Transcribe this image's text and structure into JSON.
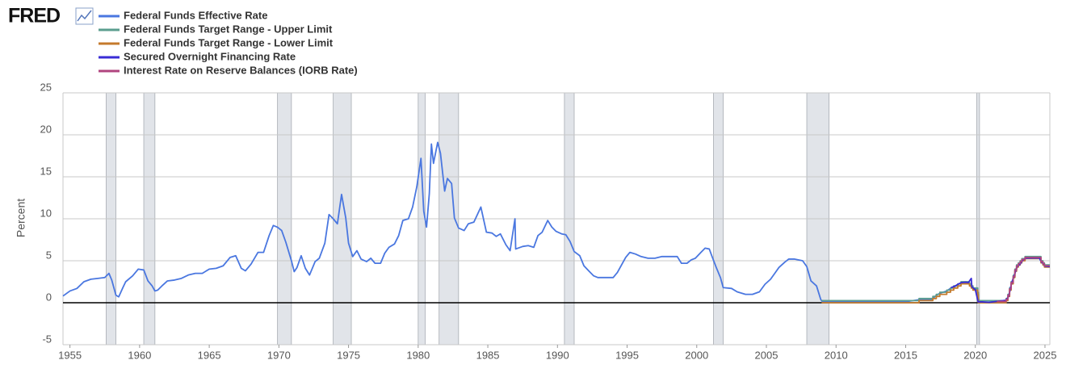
{
  "logo": "FRED",
  "chart_data": {
    "type": "line",
    "y_label": "Percent",
    "xlim": [
      1954.5,
      2025.35
    ],
    "xticks": [
      1955,
      1960,
      1965,
      1970,
      1975,
      1980,
      1985,
      1990,
      1995,
      2000,
      2005,
      2010,
      2015,
      2020,
      2025
    ],
    "ylim": [
      -5,
      25
    ],
    "yticks": [
      -5,
      0,
      5,
      10,
      15,
      20,
      25
    ],
    "grid": true,
    "recession_color": "#e1e4e9",
    "recessions": [
      [
        1957.6,
        1958.3
      ],
      [
        1960.3,
        1961.1
      ],
      [
        1969.9,
        1970.9
      ],
      [
        1973.9,
        1975.2
      ],
      [
        1980.0,
        1980.5
      ],
      [
        1981.5,
        1982.9
      ],
      [
        1990.5,
        1991.2
      ],
      [
        2001.2,
        2001.9
      ],
      [
        2007.9,
        2009.5
      ],
      [
        2020.1,
        2020.3
      ]
    ],
    "series": [
      {
        "name": "Federal Funds Effective Rate",
        "color": "#4a77e0",
        "x": [
          1954.5,
          1955.0,
          1955.5,
          1956.0,
          1956.5,
          1957.0,
          1957.5,
          1957.8,
          1958.0,
          1958.3,
          1958.5,
          1958.8,
          1959.0,
          1959.5,
          1959.9,
          1960.3,
          1960.6,
          1960.9,
          1961.1,
          1961.3,
          1961.6,
          1962.0,
          1962.5,
          1963.0,
          1963.5,
          1964.0,
          1964.5,
          1965.0,
          1965.5,
          1966.0,
          1966.5,
          1966.9,
          1967.3,
          1967.6,
          1968.0,
          1968.5,
          1968.9,
          1969.3,
          1969.6,
          1969.9,
          1970.2,
          1970.5,
          1970.9,
          1971.1,
          1971.3,
          1971.6,
          1971.9,
          1972.2,
          1972.6,
          1972.9,
          1973.3,
          1973.6,
          1973.9,
          1974.2,
          1974.5,
          1974.8,
          1975.0,
          1975.3,
          1975.6,
          1975.9,
          1976.3,
          1976.6,
          1976.9,
          1977.3,
          1977.6,
          1977.9,
          1978.3,
          1978.6,
          1978.9,
          1979.3,
          1979.6,
          1979.9,
          1980.2,
          1980.4,
          1980.6,
          1980.8,
          1980.95,
          1981.1,
          1981.4,
          1981.6,
          1981.9,
          1982.1,
          1982.4,
          1982.6,
          1982.9,
          1983.3,
          1983.6,
          1984.0,
          1984.5,
          1984.9,
          1985.3,
          1985.6,
          1985.9,
          1986.3,
          1986.6,
          1986.95,
          1987.0,
          1987.5,
          1987.9,
          1988.3,
          1988.6,
          1988.9,
          1989.3,
          1989.6,
          1989.9,
          1990.3,
          1990.6,
          1990.9,
          1991.2,
          1991.6,
          1991.9,
          1992.3,
          1992.6,
          1992.9,
          1993.5,
          1994.0,
          1994.3,
          1994.6,
          1994.9,
          1995.2,
          1995.6,
          1996.0,
          1996.5,
          1997.0,
          1997.5,
          1998.0,
          1998.6,
          1998.9,
          1999.3,
          1999.6,
          1999.9,
          2000.3,
          2000.6,
          2000.9,
          2001.1,
          2001.4,
          2001.7,
          2001.9,
          2002.5,
          2002.9,
          2003.5,
          2004.0,
          2004.5,
          2004.9,
          2005.3,
          2005.6,
          2005.9,
          2006.3,
          2006.6,
          2007.0,
          2007.6,
          2007.9,
          2008.2,
          2008.6,
          2008.9,
          2009.0,
          2009.5,
          2011.0,
          2013.0,
          2015.0,
          2015.95,
          2016.9,
          2017.2,
          2017.5,
          2017.95,
          2018.2,
          2018.5,
          2018.8,
          2019.0,
          2019.5,
          2019.6,
          2019.8,
          2020.1,
          2020.2,
          2020.3,
          2021.0,
          2022.2,
          2022.4,
          2022.5,
          2022.6,
          2022.75,
          2022.9,
          2023.0,
          2023.2,
          2023.4,
          2023.6,
          2024.6,
          2024.75,
          2024.9,
          2025.0,
          2025.35
        ],
        "values": [
          0.8,
          1.4,
          1.7,
          2.5,
          2.8,
          2.9,
          3.0,
          3.5,
          2.7,
          0.9,
          0.7,
          1.8,
          2.5,
          3.2,
          4.0,
          3.9,
          2.6,
          2.0,
          1.4,
          1.5,
          2.0,
          2.6,
          2.7,
          2.9,
          3.3,
          3.5,
          3.5,
          4.0,
          4.1,
          4.4,
          5.4,
          5.6,
          4.1,
          3.8,
          4.6,
          6.0,
          6.0,
          8.0,
          9.2,
          9.0,
          8.6,
          7.2,
          5.0,
          3.7,
          4.2,
          5.6,
          4.1,
          3.3,
          4.9,
          5.3,
          7.1,
          10.5,
          10.0,
          9.4,
          12.9,
          10.1,
          7.1,
          5.5,
          6.2,
          5.2,
          4.9,
          5.3,
          4.7,
          4.7,
          5.9,
          6.6,
          7.0,
          8.0,
          9.8,
          10.0,
          11.4,
          13.8,
          17.2,
          10.9,
          9.0,
          13.0,
          18.9,
          16.6,
          19.1,
          17.8,
          13.3,
          14.8,
          14.2,
          10.1,
          8.9,
          8.6,
          9.4,
          9.6,
          11.4,
          8.4,
          8.3,
          7.9,
          8.2,
          6.9,
          6.2,
          10.0,
          6.4,
          6.7,
          6.8,
          6.6,
          8.0,
          8.4,
          9.8,
          9.0,
          8.5,
          8.2,
          8.1,
          7.3,
          6.1,
          5.6,
          4.4,
          3.7,
          3.2,
          3.0,
          3.0,
          3.0,
          3.6,
          4.5,
          5.4,
          6.0,
          5.8,
          5.5,
          5.3,
          5.3,
          5.5,
          5.5,
          5.5,
          4.7,
          4.7,
          5.1,
          5.3,
          6.0,
          6.5,
          6.4,
          5.5,
          4.2,
          3.0,
          1.8,
          1.7,
          1.3,
          1.0,
          1.0,
          1.3,
          2.2,
          2.8,
          3.5,
          4.2,
          4.8,
          5.2,
          5.2,
          5.0,
          4.3,
          2.6,
          2.0,
          0.4,
          0.15,
          0.16,
          0.1,
          0.1,
          0.12,
          0.36,
          0.4,
          0.9,
          1.15,
          1.4,
          1.7,
          1.9,
          2.2,
          2.4,
          2.4,
          2.1,
          1.8,
          1.6,
          0.65,
          0.05,
          0.08,
          0.2,
          0.8,
          1.6,
          2.3,
          3.1,
          3.8,
          4.3,
          4.6,
          5.1,
          5.3,
          5.33,
          4.8,
          4.6,
          4.33,
          4.33
        ]
      },
      {
        "name": "Federal Funds Target Range - Upper Limit",
        "color": "#5b9e8f",
        "x": [
          2008.96,
          2015.96,
          2015.96,
          2016.95,
          2016.95,
          2017.2,
          2017.2,
          2017.45,
          2017.45,
          2017.95,
          2017.95,
          2018.22,
          2018.22,
          2018.45,
          2018.45,
          2018.74,
          2018.74,
          2018.97,
          2018.97,
          2019.58,
          2019.58,
          2019.71,
          2019.71,
          2019.83,
          2019.83,
          2020.17,
          2020.17,
          2020.21,
          2020.21,
          2022.21,
          2022.21,
          2022.34,
          2022.34,
          2022.46,
          2022.46,
          2022.57,
          2022.57,
          2022.72,
          2022.72,
          2022.84,
          2022.84,
          2022.96,
          2022.96,
          2023.09,
          2023.09,
          2023.22,
          2023.22,
          2023.34,
          2023.34,
          2023.57,
          2023.57,
          2024.71,
          2024.71,
          2024.85,
          2024.85,
          2024.96,
          2024.96,
          2025.35
        ],
        "values": [
          0.25,
          0.25,
          0.5,
          0.5,
          0.75,
          0.75,
          1.0,
          1.0,
          1.25,
          1.25,
          1.5,
          1.5,
          1.75,
          1.75,
          2.0,
          2.0,
          2.25,
          2.25,
          2.5,
          2.5,
          2.25,
          2.25,
          2.0,
          2.0,
          1.75,
          1.75,
          1.25,
          1.25,
          0.25,
          0.25,
          0.5,
          0.5,
          1.0,
          1.0,
          1.75,
          1.75,
          2.5,
          2.5,
          3.25,
          3.25,
          4.0,
          4.0,
          4.5,
          4.5,
          4.75,
          4.75,
          5.0,
          5.0,
          5.25,
          5.25,
          5.5,
          5.5,
          5.0,
          5.0,
          4.75,
          4.75,
          4.5,
          4.5
        ]
      },
      {
        "name": "Federal Funds Target Range - Lower Limit",
        "color": "#c47a2c",
        "x": [
          2008.96,
          2015.96,
          2015.96,
          2016.95,
          2016.95,
          2017.2,
          2017.2,
          2017.45,
          2017.45,
          2017.95,
          2017.95,
          2018.22,
          2018.22,
          2018.45,
          2018.45,
          2018.74,
          2018.74,
          2018.97,
          2018.97,
          2019.58,
          2019.58,
          2019.71,
          2019.71,
          2019.83,
          2019.83,
          2020.17,
          2020.17,
          2020.21,
          2020.21,
          2022.21,
          2022.21,
          2022.34,
          2022.34,
          2022.46,
          2022.46,
          2022.57,
          2022.57,
          2022.72,
          2022.72,
          2022.84,
          2022.84,
          2022.96,
          2022.96,
          2023.09,
          2023.09,
          2023.22,
          2023.22,
          2023.34,
          2023.34,
          2023.57,
          2023.57,
          2024.71,
          2024.71,
          2024.85,
          2024.85,
          2024.96,
          2024.96,
          2025.35
        ],
        "values": [
          0,
          0,
          0.25,
          0.25,
          0.5,
          0.5,
          0.75,
          0.75,
          1.0,
          1.0,
          1.25,
          1.25,
          1.5,
          1.5,
          1.75,
          1.75,
          2.0,
          2.0,
          2.25,
          2.25,
          2.0,
          2.0,
          1.75,
          1.75,
          1.5,
          1.5,
          1.0,
          1.0,
          0,
          0,
          0.25,
          0.25,
          0.75,
          0.75,
          1.5,
          1.5,
          2.25,
          2.25,
          3.0,
          3.0,
          3.75,
          3.75,
          4.25,
          4.25,
          4.5,
          4.5,
          4.75,
          4.75,
          5.0,
          5.0,
          5.25,
          5.25,
          4.75,
          4.75,
          4.5,
          4.5,
          4.25,
          4.25
        ]
      },
      {
        "name": "Secured Overnight Financing Rate",
        "color": "#3a2cd6",
        "x": [
          2018.25,
          2018.5,
          2018.75,
          2019.0,
          2019.3,
          2019.5,
          2019.71,
          2019.75,
          2020.0,
          2020.2,
          2020.5,
          2021.0,
          2022.2,
          2022.4,
          2022.5,
          2022.6,
          2022.75,
          2022.9,
          2023.0,
          2023.2,
          2023.4,
          2023.6,
          2024.6,
          2024.75,
          2024.9,
          2025.0,
          2025.35
        ],
        "values": [
          1.8,
          1.95,
          2.2,
          2.4,
          2.45,
          2.4,
          2.9,
          1.9,
          1.55,
          0.1,
          0.1,
          0.05,
          0.3,
          0.8,
          1.55,
          2.3,
          3.0,
          3.8,
          4.3,
          4.55,
          5.05,
          5.3,
          5.33,
          4.85,
          4.6,
          4.35,
          4.3
        ]
      },
      {
        "name": "Interest Rate on Reserve Balances (IORB Rate)",
        "color": "#b0457f",
        "x": [
          2021.55,
          2022.21,
          2022.21,
          2022.34,
          2022.34,
          2022.46,
          2022.46,
          2022.57,
          2022.57,
          2022.72,
          2022.72,
          2022.84,
          2022.84,
          2022.96,
          2022.96,
          2023.09,
          2023.09,
          2023.22,
          2023.22,
          2023.34,
          2023.34,
          2023.57,
          2023.57,
          2024.71,
          2024.71,
          2024.85,
          2024.85,
          2024.96,
          2024.96,
          2025.35
        ],
        "values": [
          0.15,
          0.15,
          0.4,
          0.4,
          0.9,
          0.9,
          1.65,
          1.65,
          2.4,
          2.4,
          3.15,
          3.15,
          3.9,
          3.9,
          4.4,
          4.4,
          4.65,
          4.65,
          4.9,
          4.9,
          5.15,
          5.15,
          5.4,
          5.4,
          4.9,
          4.9,
          4.65,
          4.65,
          4.4,
          4.4
        ]
      }
    ]
  }
}
